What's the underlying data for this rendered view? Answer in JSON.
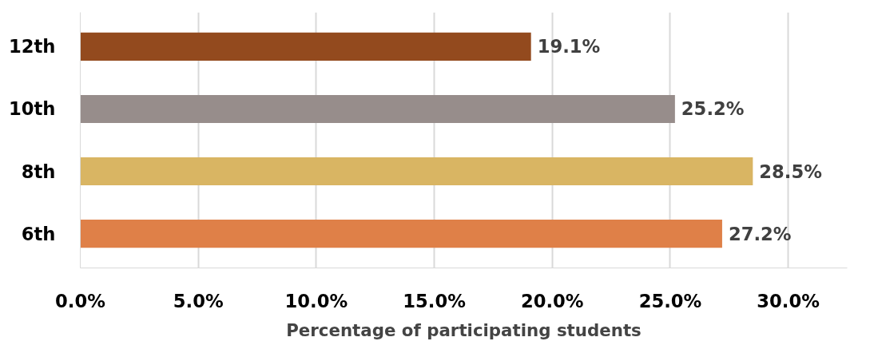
{
  "chart_data": {
    "type": "bar",
    "orientation": "horizontal",
    "xlabel": "Percentage of participating students",
    "categories": [
      "12th",
      "10th",
      "8th",
      "6th"
    ],
    "values": [
      19.1,
      25.2,
      28.5,
      27.2
    ],
    "colors": [
      "#934a1e",
      "#978d8b",
      "#d9b563",
      "#df8048"
    ],
    "value_labels": [
      "19.1%",
      "25.2%",
      "28.5%",
      "27.2%"
    ],
    "xlim": [
      0,
      32.5
    ],
    "xticks": [
      {
        "value": 0,
        "label": "0.0%"
      },
      {
        "value": 5,
        "label": "5.0%"
      },
      {
        "value": 10,
        "label": "10.0%"
      },
      {
        "value": 15,
        "label": "15.0%"
      },
      {
        "value": 20,
        "label": "20.0%"
      },
      {
        "value": 25,
        "label": "25.0%"
      },
      {
        "value": 30,
        "label": "30.0%"
      }
    ],
    "grid": "x"
  }
}
